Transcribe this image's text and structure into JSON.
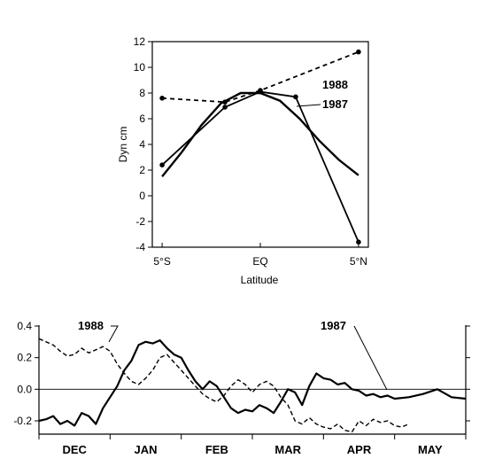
{
  "chart_data": [
    {
      "type": "line",
      "xlabel": "Latitude",
      "ylabel": "Dyn  cm",
      "x_ticks": [
        "5°S",
        "EQ",
        "5°N"
      ],
      "x_tick_values": [
        -5,
        0,
        5
      ],
      "xlim": [
        -5.5,
        5.5
      ],
      "ylim": [
        -4,
        12
      ],
      "y_ticks": [
        -4,
        -2,
        0,
        2,
        4,
        6,
        8,
        10,
        12
      ],
      "grid": false,
      "series": [
        {
          "name": "1988",
          "style": "dashed-with-markers",
          "x": [
            -5,
            -1.8,
            0,
            5
          ],
          "y": [
            7.6,
            7.3,
            8.2,
            11.2
          ],
          "extra_points": {
            "x": [
              2.8,
              3.5
            ],
            "y": [
              10.6,
              10.8
            ]
          }
        },
        {
          "name": "1987",
          "style": "solid-with-markers",
          "x": [
            -5,
            -1.8,
            0,
            1.8,
            5
          ],
          "y": [
            2.4,
            6.9,
            8.1,
            7.7,
            -3.6
          ]
        },
        {
          "name": "",
          "style": "solid-smooth",
          "x": [
            -5,
            -4,
            -3,
            -2,
            -1,
            0,
            1,
            2,
            3,
            4,
            5
          ],
          "y": [
            1.5,
            3.4,
            5.5,
            7.2,
            8.0,
            8.0,
            7.4,
            6.0,
            4.3,
            2.8,
            1.6
          ]
        }
      ]
    },
    {
      "type": "line",
      "categories": [
        "DEC",
        "JAN",
        "FEB",
        "MAR",
        "APR",
        "MAY"
      ],
      "ylim": [
        -0.3,
        0.4
      ],
      "y_ticks": [
        -0.2,
        0.0,
        0.2,
        0.4
      ],
      "y_tick_labels": [
        "-0.2",
        "0.0",
        "0.2",
        "0.4"
      ],
      "zero_line": true,
      "grid": false,
      "series": [
        {
          "name": "1987",
          "style": "solid",
          "x": [
            0,
            0.1,
            0.2,
            0.3,
            0.4,
            0.5,
            0.6,
            0.7,
            0.8,
            0.9,
            1.0,
            1.1,
            1.2,
            1.3,
            1.4,
            1.5,
            1.6,
            1.7,
            1.8,
            1.9,
            2.0,
            2.1,
            2.2,
            2.3,
            2.4,
            2.5,
            2.6,
            2.7,
            2.8,
            2.9,
            3.0,
            3.1,
            3.2,
            3.3,
            3.4,
            3.5,
            3.6,
            3.7,
            3.8,
            3.9,
            4.0,
            4.1,
            4.2,
            4.3,
            4.4,
            4.5,
            4.6,
            4.7,
            4.8,
            4.9,
            5.0,
            5.2,
            5.4,
            5.6,
            5.8,
            6.0
          ],
          "y": [
            -0.2,
            -0.19,
            -0.17,
            -0.22,
            -0.2,
            -0.23,
            -0.15,
            -0.17,
            -0.22,
            -0.12,
            -0.05,
            0.02,
            0.12,
            0.18,
            0.28,
            0.3,
            0.29,
            0.31,
            0.26,
            0.22,
            0.2,
            0.12,
            0.05,
            0.0,
            0.05,
            0.02,
            -0.05,
            -0.12,
            -0.15,
            -0.13,
            -0.14,
            -0.1,
            -0.12,
            -0.15,
            -0.08,
            0.0,
            -0.02,
            -0.1,
            0.02,
            0.1,
            0.07,
            0.06,
            0.03,
            0.04,
            0.0,
            -0.01,
            -0.04,
            -0.03,
            -0.05,
            -0.04,
            -0.06,
            -0.05,
            -0.03,
            0.0,
            -0.05,
            -0.06
          ]
        },
        {
          "name": "1988",
          "style": "dashed",
          "x": [
            0,
            0.1,
            0.2,
            0.3,
            0.4,
            0.5,
            0.6,
            0.7,
            0.8,
            0.9,
            1.0,
            1.1,
            1.2,
            1.3,
            1.4,
            1.5,
            1.6,
            1.7,
            1.8,
            1.9,
            2.0,
            2.1,
            2.2,
            2.3,
            2.4,
            2.5,
            2.6,
            2.7,
            2.8,
            2.9,
            3.0,
            3.1,
            3.2,
            3.3,
            3.4,
            3.5,
            3.6,
            3.7,
            3.8,
            3.9,
            4.0,
            4.1,
            4.2,
            4.3,
            4.4,
            4.5,
            4.6,
            4.7,
            4.8,
            4.9,
            5.0,
            5.1,
            5.2
          ],
          "y": [
            0.32,
            0.3,
            0.28,
            0.24,
            0.21,
            0.22,
            0.26,
            0.23,
            0.25,
            0.27,
            0.24,
            0.16,
            0.1,
            0.05,
            0.03,
            0.07,
            0.12,
            0.2,
            0.22,
            0.17,
            0.12,
            0.07,
            0.02,
            -0.03,
            -0.06,
            -0.08,
            -0.04,
            0.02,
            0.06,
            0.03,
            -0.02,
            0.03,
            0.05,
            0.02,
            -0.05,
            -0.1,
            -0.2,
            -0.22,
            -0.18,
            -0.22,
            -0.24,
            -0.25,
            -0.22,
            -0.26,
            -0.27,
            -0.2,
            -0.23,
            -0.19,
            -0.21,
            -0.2,
            -0.23,
            -0.24,
            -0.22
          ]
        }
      ]
    }
  ]
}
